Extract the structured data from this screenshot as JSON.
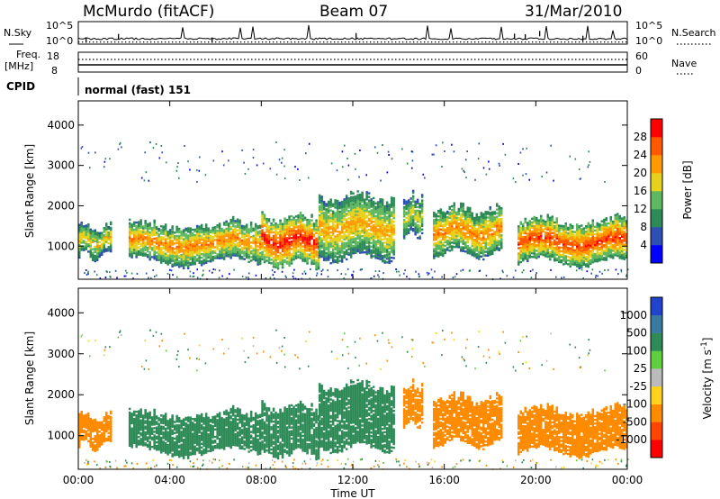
{
  "header": {
    "station": "McMurdo (fitACF)",
    "beam": "Beam 07",
    "date": "31/Mar/2010"
  },
  "top_panels": {
    "nsky_label": "N.Sky",
    "nsearch_label": "N.Search",
    "nsky_ticks": [
      "10^5",
      "10^0"
    ],
    "nsearch_ticks": [
      "10^5",
      "10^0"
    ],
    "freq_label_1": "Freq.",
    "freq_label_2": "[MHz]",
    "freq_ticks": [
      "18",
      "8"
    ],
    "nave_label": "Nave",
    "nave_ticks": [
      "60",
      "0"
    ],
    "cpid_label": "CPID",
    "cpid_value": "normal (fast) 151"
  },
  "chart_data": [
    {
      "type": "heatmap",
      "ylabel": "Slant Range [km]",
      "yticks": [
        "1000",
        "2000",
        "3000",
        "4000"
      ],
      "ylim": [
        180,
        4600
      ],
      "colorbar_label": "Power [dB]",
      "colorbar_ticks": [
        "4",
        "8",
        "12",
        "16",
        "20",
        "24",
        "28"
      ],
      "colorbar_colors": [
        "#0000ff",
        "#2e4fb3",
        "#2e8b57",
        "#5fb85f",
        "#e6d21c",
        "#ff9a00",
        "#ff5a00",
        "#ff0000"
      ],
      "echo_bands": [
        {
          "t_start": 0.0,
          "t_end": 1.4,
          "range_low": 750,
          "range_high": 1450,
          "peak_db": 20
        },
        {
          "t_start": 2.2,
          "t_end": 8.0,
          "range_low": 600,
          "range_high": 1500,
          "peak_db": 24
        },
        {
          "t_start": 8.0,
          "t_end": 10.5,
          "range_low": 550,
          "range_high": 1700,
          "peak_db": 30
        },
        {
          "t_start": 10.5,
          "t_end": 13.8,
          "range_low": 700,
          "range_high": 2200,
          "peak_db": 22
        },
        {
          "t_start": 14.2,
          "t_end": 15.0,
          "range_low": 1300,
          "range_high": 2200,
          "peak_db": 18
        },
        {
          "t_start": 15.5,
          "t_end": 18.5,
          "range_low": 800,
          "range_high": 1900,
          "peak_db": 24
        },
        {
          "t_start": 19.2,
          "t_end": 24.0,
          "range_low": 600,
          "range_high": 1600,
          "peak_db": 28
        }
      ]
    },
    {
      "type": "heatmap",
      "ylabel": "Slant Range [km]",
      "yticks": [
        "1000",
        "2000",
        "3000",
        "4000"
      ],
      "ylim": [
        180,
        4600
      ],
      "colorbar_label": "Velocity [m s^-1]",
      "colorbar_ticks": [
        "1000",
        "500",
        "100",
        "25",
        "-25",
        "-100",
        "-500",
        "-1000"
      ],
      "colorbar_colors": [
        "#2244cc",
        "#3a7aa0",
        "#2e8b57",
        "#5fcf40",
        "#bbbbbb",
        "#ffd21c",
        "#ff8c00",
        "#ff4400",
        "#ff0000"
      ],
      "echo_bands": [
        {
          "t_start": 0.0,
          "t_end": 1.4,
          "range_low": 750,
          "range_high": 1450,
          "velocity": -300
        },
        {
          "t_start": 2.2,
          "t_end": 8.0,
          "range_low": 600,
          "range_high": 1500,
          "velocity": 300
        },
        {
          "t_start": 8.0,
          "t_end": 10.5,
          "range_low": 550,
          "range_high": 1700,
          "velocity": 300
        },
        {
          "t_start": 10.5,
          "t_end": 13.8,
          "range_low": 700,
          "range_high": 2200,
          "velocity": 200
        },
        {
          "t_start": 14.2,
          "t_end": 15.0,
          "range_low": 1300,
          "range_high": 2200,
          "velocity": -300
        },
        {
          "t_start": 15.5,
          "t_end": 18.5,
          "range_low": 800,
          "range_high": 1900,
          "velocity": -300
        },
        {
          "t_start": 19.2,
          "t_end": 24.0,
          "range_low": 600,
          "range_high": 1600,
          "velocity": -300
        }
      ]
    }
  ],
  "x_axis": {
    "xlabel": "Time UT",
    "ticks": [
      "00:00",
      "04:00",
      "08:00",
      "12:00",
      "16:00",
      "20:00",
      "00:00"
    ],
    "tick_hours": [
      0,
      4,
      8,
      12,
      16,
      20,
      24
    ],
    "xlim": [
      0,
      24
    ]
  }
}
